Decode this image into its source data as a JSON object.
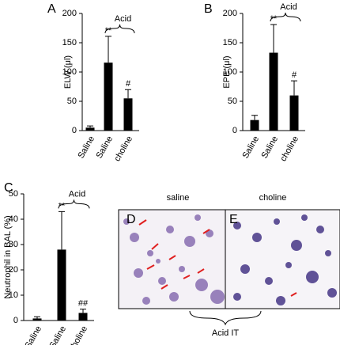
{
  "chart_data": [
    {
      "type": "bar",
      "panel_label": "A",
      "y_label": "ELW (μl)",
      "categories": [
        "Saline",
        "Saline",
        "choline"
      ],
      "series": [
        {
          "color": "#000000",
          "values": [
            5,
            116,
            55
          ],
          "errors": [
            3,
            45,
            15
          ]
        }
      ],
      "bar_annotations": [
        null,
        "**",
        "#"
      ],
      "group_label": "Acid",
      "ylim": [
        0,
        200
      ],
      "yticks": [
        0,
        50,
        100,
        150,
        200
      ]
    },
    {
      "type": "bar",
      "panel_label": "B",
      "y_label": "EPE (μl)",
      "categories": [
        "Saline",
        "Saline",
        "choline"
      ],
      "series": [
        {
          "color": "#000000",
          "values": [
            18,
            133,
            60
          ],
          "errors": [
            8,
            48,
            25
          ]
        }
      ],
      "bar_annotations": [
        null,
        "**",
        "#"
      ],
      "group_label": "Acid",
      "ylim": [
        0,
        200
      ],
      "yticks": [
        0,
        50,
        100,
        150,
        200
      ]
    },
    {
      "type": "bar",
      "panel_label": "C",
      "y_label": "Neutrophil in BAL (%)",
      "categories": [
        "Saline",
        "Saline",
        "choline"
      ],
      "series": [
        {
          "color": "#000000",
          "values": [
            0.8,
            28,
            3
          ],
          "errors": [
            0.7,
            15,
            1.5
          ]
        }
      ],
      "bar_annotations": [
        null,
        "**",
        "##"
      ],
      "group_label": "Acid",
      "ylim": [
        0,
        50
      ],
      "yticks": [
        0,
        10,
        20,
        30,
        40,
        50
      ]
    }
  ],
  "micrographs": {
    "panels": [
      {
        "label": "D",
        "title": "saline"
      },
      {
        "label": "E",
        "title": "choline"
      }
    ],
    "group_label": "Acid IT"
  }
}
